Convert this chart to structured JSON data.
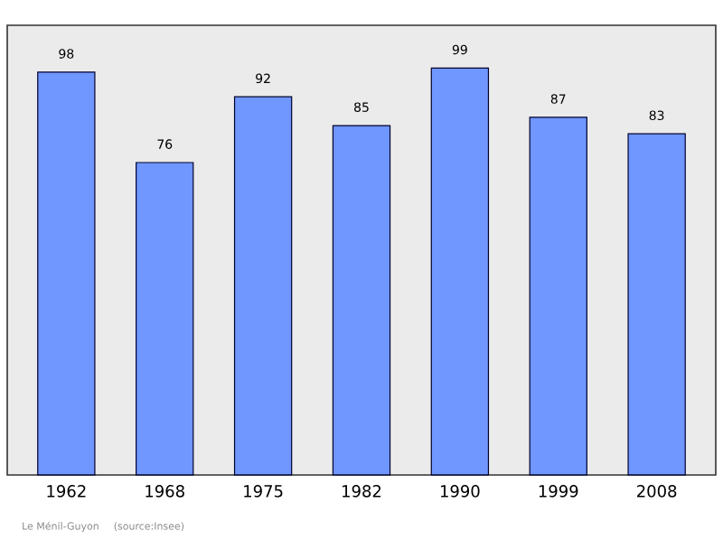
{
  "chart_data": {
    "type": "bar",
    "categories": [
      "1962",
      "1968",
      "1975",
      "1982",
      "1990",
      "1999",
      "2008"
    ],
    "values": [
      98,
      76,
      92,
      85,
      99,
      87,
      83
    ],
    "color": "#7096ff",
    "data_labels": true,
    "annotations": [
      "Le Ménil-Guyon",
      "(source:Insee)"
    ]
  }
}
